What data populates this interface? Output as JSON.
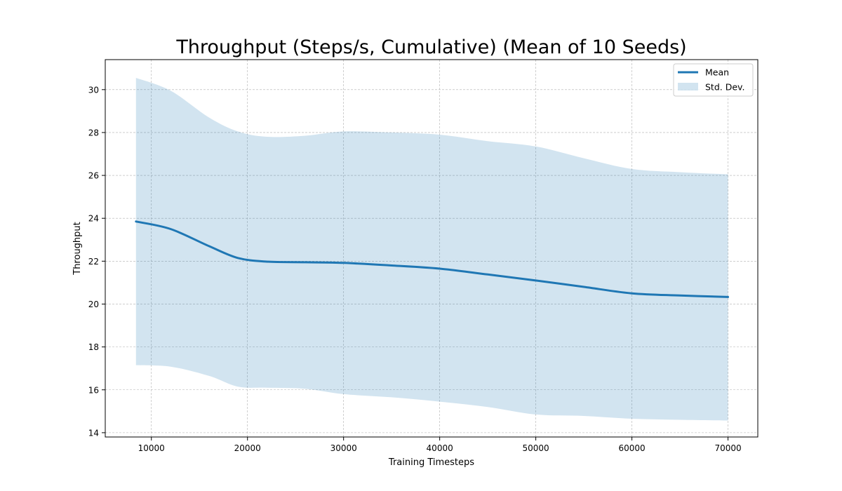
{
  "chart_data": {
    "type": "line",
    "title": "Throughput (Steps/s, Cumulative) (Mean of 10 Seeds)",
    "xlabel": "Training Timesteps",
    "ylabel": "Throughput",
    "xlim": [
      5200,
      73100
    ],
    "ylim": [
      13.8,
      31.4
    ],
    "xticks": [
      10000,
      20000,
      30000,
      40000,
      50000,
      60000,
      70000
    ],
    "yticks": [
      14,
      16,
      18,
      20,
      22,
      24,
      26,
      28,
      30
    ],
    "grid": true,
    "legend_position": "top-right",
    "x": [
      8400,
      12000,
      16000,
      19000,
      22000,
      26000,
      30000,
      35000,
      40000,
      45000,
      50000,
      55000,
      60000,
      65000,
      70000
    ],
    "series": [
      {
        "name": "Mean",
        "type": "line",
        "color": "#1f77b4",
        "values": [
          23.85,
          23.5,
          22.7,
          22.15,
          21.98,
          21.95,
          21.92,
          21.8,
          21.65,
          21.38,
          21.1,
          20.8,
          20.5,
          20.4,
          20.33
        ]
      },
      {
        "name": "Std. Dev.",
        "type": "band",
        "color": "#1f77b4",
        "upper": [
          30.55,
          29.95,
          28.7,
          28.05,
          27.8,
          27.85,
          28.05,
          28.0,
          27.9,
          27.6,
          27.35,
          26.8,
          26.3,
          26.15,
          26.05
        ],
        "lower": [
          17.15,
          17.08,
          16.65,
          16.15,
          16.1,
          16.05,
          15.8,
          15.65,
          15.45,
          15.2,
          14.85,
          14.78,
          14.65,
          14.6,
          14.57
        ]
      }
    ]
  }
}
